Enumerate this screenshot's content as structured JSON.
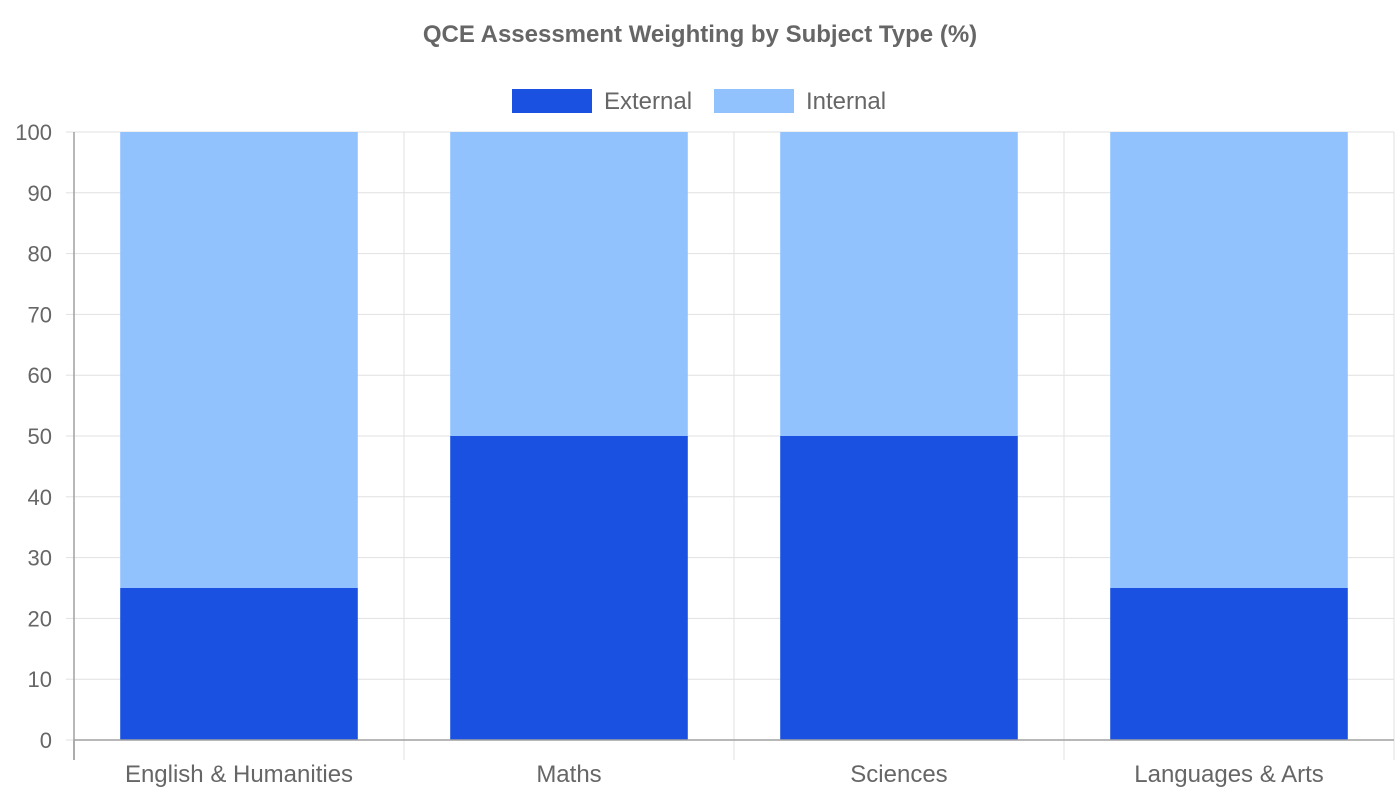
{
  "chart_data": {
    "type": "bar",
    "stacked": true,
    "title": "QCE Assessment Weighting by Subject Type (%)",
    "categories": [
      "English & Humanities",
      "Maths",
      "Sciences",
      "Languages & Arts"
    ],
    "series": [
      {
        "name": "External",
        "values": [
          25,
          50,
          50,
          25
        ],
        "color": "#1a51e0"
      },
      {
        "name": "Internal",
        "values": [
          75,
          50,
          50,
          75
        ],
        "color": "#91c2fd"
      }
    ],
    "ylim": [
      0,
      100
    ],
    "yticks": [
      "0",
      "10",
      "20",
      "30",
      "40",
      "50",
      "60",
      "70",
      "80",
      "90",
      "100"
    ],
    "grid": true,
    "legend_position": "top-center"
  }
}
